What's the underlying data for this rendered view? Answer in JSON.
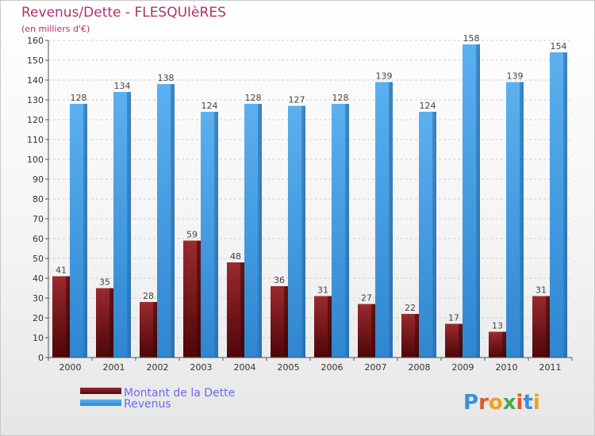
{
  "chart_data": {
    "type": "bar",
    "title": "Revenus/Dette - FLESQUIèRES",
    "subtitle": "(en milliers d'€)",
    "categories": [
      "2000",
      "2001",
      "2002",
      "2003",
      "2004",
      "2005",
      "2006",
      "2007",
      "2008",
      "2009",
      "2010",
      "2011"
    ],
    "series": [
      {
        "name": "Montant de la Dette",
        "color": "#7a1418",
        "values": [
          41,
          35,
          28,
          59,
          48,
          36,
          31,
          27,
          22,
          17,
          13,
          31
        ]
      },
      {
        "name": "Revenus",
        "color": "#4aa0e6",
        "values": [
          128,
          134,
          138,
          124,
          128,
          127,
          128,
          139,
          124,
          158,
          139,
          154
        ]
      }
    ],
    "ylim": [
      0,
      160
    ],
    "ytick_step": 10,
    "grid": true,
    "legend_position": "bottom-left"
  },
  "logo": {
    "text": "Proxiti"
  }
}
